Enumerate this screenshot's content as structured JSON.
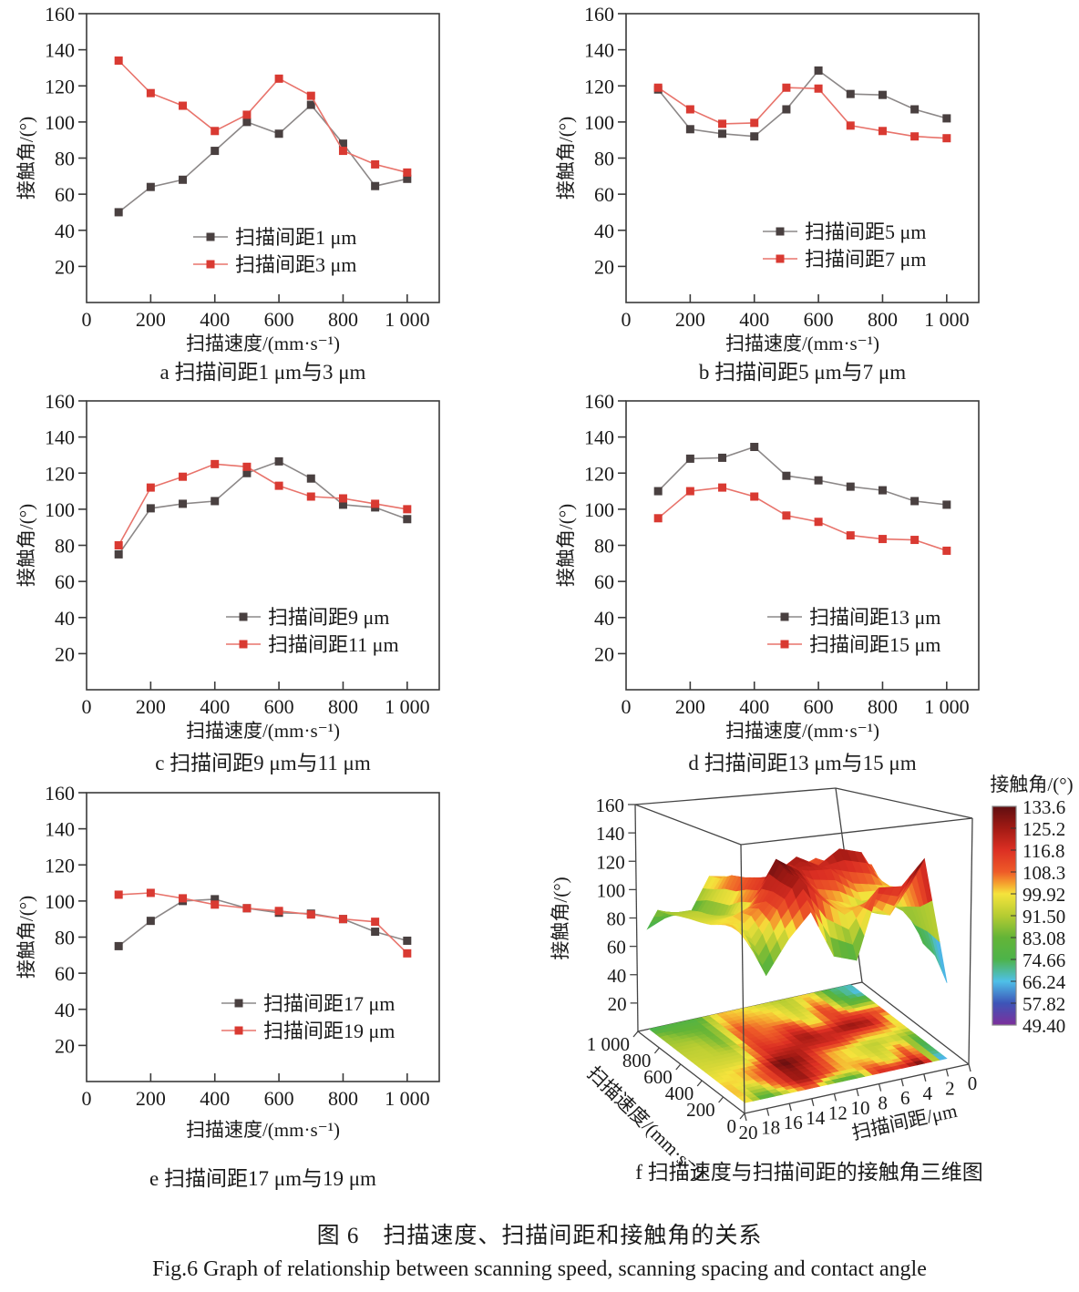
{
  "figure": {
    "caption_zh": "图 6　扫描速度、扫描间距和接触角的关系",
    "caption_en": "Fig.6 Graph of relationship between scanning speed, scanning spacing and contact angle"
  },
  "colors": {
    "dark_marker": "#494040",
    "dark_line": "#8c8888",
    "red_marker": "#d93a32",
    "red_line": "#e8736b",
    "frame": "#3a3a3a",
    "text": "#1a1a1a"
  },
  "axis_labels": {
    "x": "扫描速度/(mm·s⁻¹)",
    "y": "接触角/(°)"
  },
  "chart_data": [
    {
      "type": "line",
      "key": "a",
      "caption": "a 扫描间距1 μm与3 μm",
      "xlabel": "扫描速度/(mm·s⁻¹)",
      "ylabel": "接触角/(°)",
      "x": [
        100,
        200,
        300,
        400,
        500,
        600,
        700,
        800,
        900,
        1000
      ],
      "xlim": [
        0,
        1100
      ],
      "ylim": [
        0,
        160
      ],
      "x_ticks": [
        0,
        200,
        400,
        600,
        800,
        1000
      ],
      "x_tick_labels": [
        "0",
        "200",
        "400",
        "600",
        "800",
        "1 000"
      ],
      "y_ticks": [
        20,
        40,
        60,
        80,
        100,
        120,
        140,
        160
      ],
      "legend_position": "lower center",
      "series": [
        {
          "name": "扫描间距1 μm",
          "role": "dark",
          "values": [
            50,
            64,
            68,
            84,
            100,
            93.5,
            109.5,
            88,
            64.5,
            68.5
          ]
        },
        {
          "name": "扫描间距3 μm",
          "role": "red",
          "values": [
            134,
            116,
            109,
            95,
            104,
            124,
            114.5,
            84,
            76.5,
            72
          ]
        }
      ]
    },
    {
      "type": "line",
      "key": "b",
      "caption": "b 扫描间距5 μm与7 μm",
      "xlabel": "扫描速度/(mm·s⁻¹)",
      "ylabel": "接触角/(°)",
      "x": [
        100,
        200,
        300,
        400,
        500,
        600,
        700,
        800,
        900,
        1000
      ],
      "xlim": [
        0,
        1100
      ],
      "ylim": [
        0,
        160
      ],
      "x_ticks": [
        0,
        200,
        400,
        600,
        800,
        1000
      ],
      "x_tick_labels": [
        "0",
        "200",
        "400",
        "600",
        "800",
        "1 000"
      ],
      "y_ticks": [
        20,
        40,
        60,
        80,
        100,
        120,
        140,
        160
      ],
      "legend_position": "lower center",
      "series": [
        {
          "name": "扫描间距5 μm",
          "role": "dark",
          "values": [
            118,
            96,
            93.5,
            92,
            107,
            128.5,
            115.5,
            115,
            107,
            102
          ]
        },
        {
          "name": "扫描间距7 μm",
          "role": "red",
          "values": [
            119,
            107,
            99,
            99.5,
            119,
            118.5,
            98,
            95,
            92,
            91
          ]
        }
      ]
    },
    {
      "type": "line",
      "key": "c",
      "caption": "c 扫描间距9 μm与11 μm",
      "xlabel": "扫描速度/(mm·s⁻¹)",
      "ylabel": "接触角/(°)",
      "x": [
        100,
        200,
        300,
        400,
        500,
        600,
        700,
        800,
        900,
        1000
      ],
      "xlim": [
        0,
        1100
      ],
      "ylim": [
        0,
        160
      ],
      "x_ticks": [
        0,
        200,
        400,
        600,
        800,
        1000
      ],
      "x_tick_labels": [
        "0",
        "200",
        "400",
        "600",
        "800",
        "1 000"
      ],
      "y_ticks": [
        20,
        40,
        60,
        80,
        100,
        120,
        140,
        160
      ],
      "legend_position": "lower center",
      "series": [
        {
          "name": "扫描间距9 μm",
          "role": "dark",
          "values": [
            75,
            100.5,
            103,
            104.5,
            120,
            126.5,
            117,
            102.5,
            101,
            94.5
          ]
        },
        {
          "name": "扫描间距11 μm",
          "role": "red",
          "values": [
            80,
            112,
            118,
            125,
            123.5,
            113,
            107,
            106,
            103,
            100
          ]
        }
      ]
    },
    {
      "type": "line",
      "key": "d",
      "caption": "d 扫描间距13 μm与15 μm",
      "xlabel": "扫描速度/(mm·s⁻¹)",
      "ylabel": "接触角/(°)",
      "x": [
        100,
        200,
        300,
        400,
        500,
        600,
        700,
        800,
        900,
        1000
      ],
      "xlim": [
        0,
        1100
      ],
      "ylim": [
        0,
        160
      ],
      "x_ticks": [
        0,
        200,
        400,
        600,
        800,
        1000
      ],
      "x_tick_labels": [
        "0",
        "200",
        "400",
        "600",
        "800",
        "1 000"
      ],
      "y_ticks": [
        20,
        40,
        60,
        80,
        100,
        120,
        140,
        160
      ],
      "legend_position": "lower center",
      "series": [
        {
          "name": "扫描间距13 μm",
          "role": "dark",
          "values": [
            110,
            128,
            128.5,
            134.5,
            118.5,
            116,
            112.5,
            110.5,
            104.5,
            102.5
          ]
        },
        {
          "name": "扫描间距15 μm",
          "role": "red",
          "values": [
            95,
            110,
            112,
            107,
            96.5,
            93,
            85.5,
            83.5,
            83,
            77
          ]
        }
      ]
    },
    {
      "type": "line",
      "key": "e",
      "caption": "e 扫描间距17 μm与19 μm",
      "xlabel": "扫描速度/(mm·s⁻¹)",
      "ylabel": "接触角/(°)",
      "x": [
        100,
        200,
        300,
        400,
        500,
        600,
        700,
        800,
        900,
        1000
      ],
      "xlim": [
        0,
        1100
      ],
      "ylim": [
        0,
        160
      ],
      "x_ticks": [
        0,
        200,
        400,
        600,
        800,
        1000
      ],
      "x_tick_labels": [
        "0",
        "200",
        "400",
        "600",
        "800",
        "1 000"
      ],
      "y_ticks": [
        20,
        40,
        60,
        80,
        100,
        120,
        140,
        160
      ],
      "legend_position": "lower center",
      "series": [
        {
          "name": "扫描间距17 μm",
          "role": "dark",
          "values": [
            75,
            89,
            100,
            101,
            96,
            93.5,
            93,
            90,
            83,
            78
          ]
        },
        {
          "name": "扫描间距19 μm",
          "role": "red",
          "values": [
            103.5,
            104.5,
            101.5,
            98,
            96,
            94.5,
            92.5,
            90,
            88.5,
            71
          ]
        }
      ]
    },
    {
      "type": "surface3d",
      "key": "f",
      "caption": "f 扫描速度与扫描间距的接触角三维图",
      "xlabel": "扫描间距/μm",
      "ylabel": "扫描速度/(mm·s⁻¹)",
      "zlabel": "接触角/(°)",
      "x_ticks": [
        20,
        18,
        16,
        14,
        12,
        10,
        8,
        6,
        4,
        2,
        0
      ],
      "y_ticks": [
        0,
        200,
        400,
        600,
        800,
        1000
      ],
      "y_tick_labels": [
        "0",
        "200",
        "400",
        "600",
        "800",
        "1 000"
      ],
      "z_ticks": [
        20,
        40,
        60,
        80,
        100,
        120,
        140,
        160
      ],
      "zlim": [
        0,
        160
      ],
      "spacing_values": [
        1,
        3,
        5,
        7,
        9,
        11,
        13,
        15,
        17,
        19
      ],
      "speed_values": [
        100,
        200,
        300,
        400,
        500,
        600,
        700,
        800,
        900,
        1000
      ],
      "z_grid_source": "series of charts a-e (spacing 1-19 μm rows × speed 100-1000 columns)",
      "colorbar": {
        "title": "接触角/(°)",
        "labels": [
          "133.6",
          "125.2",
          "116.8",
          "108.3",
          "99.92",
          "91.50",
          "83.08",
          "74.66",
          "66.24",
          "57.82",
          "49.40"
        ],
        "stops": [
          [
            49.4,
            "#7d2f9b"
          ],
          [
            57.8,
            "#3d55b8"
          ],
          [
            66.2,
            "#4fc0e8"
          ],
          [
            74.7,
            "#4db34a"
          ],
          [
            83.1,
            "#63b437"
          ],
          [
            91.5,
            "#b5cc32"
          ],
          [
            99.9,
            "#f5e33c"
          ],
          [
            104,
            "#f5a02e"
          ],
          [
            108.3,
            "#ee5b28"
          ],
          [
            116.8,
            "#dc2f23"
          ],
          [
            125.2,
            "#a21a14"
          ],
          [
            133.6,
            "#600e10"
          ]
        ]
      }
    }
  ]
}
